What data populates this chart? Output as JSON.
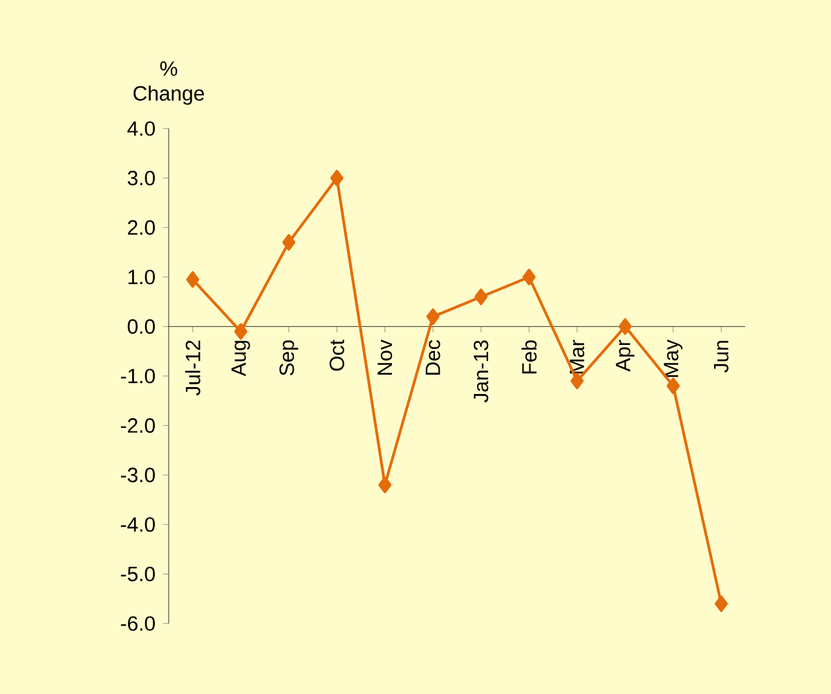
{
  "chart_data": {
    "type": "line",
    "ylabel": "% Change",
    "categories": [
      "Jul-12",
      "Aug",
      "Sep",
      "Oct",
      "Nov",
      "Dec",
      "Jan-13",
      "Feb",
      "Mar",
      "Apr",
      "May",
      "Jun"
    ],
    "series": [
      {
        "color": "#e46c0a",
        "values": [
          0.95,
          -0.1,
          1.7,
          3.0,
          -3.2,
          0.2,
          0.6,
          1.0,
          -1.1,
          0.0,
          -1.2,
          -5.6
        ]
      }
    ],
    "ylim": [
      -6,
      4
    ],
    "yticks": [
      {
        "value": -6,
        "label": "-6.0"
      },
      {
        "value": -5,
        "label": "-5.0"
      },
      {
        "value": -4,
        "label": "-4.0"
      },
      {
        "value": -3,
        "label": "-3.0"
      },
      {
        "value": -2,
        "label": "-2.0"
      },
      {
        "value": -1,
        "label": "-1.0"
      },
      {
        "value": 0,
        "label": "0.0"
      },
      {
        "value": 1,
        "label": "1.0"
      },
      {
        "value": 2,
        "label": "2.0"
      },
      {
        "value": 3,
        "label": "3.0"
      },
      {
        "value": 4,
        "label": "4.0"
      }
    ],
    "grid": false,
    "marker": "diamond",
    "line_style": "solid"
  }
}
